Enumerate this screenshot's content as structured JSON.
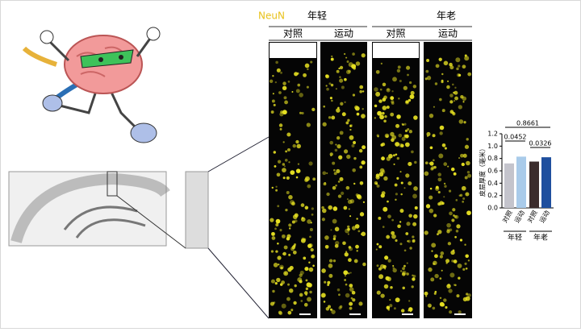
{
  "panel_labels": {
    "stain": "NeuN",
    "groups": [
      "年轻",
      "年老"
    ],
    "conditions": [
      "对照",
      "运动",
      "对照",
      "运动"
    ]
  },
  "chart_data": {
    "type": "bar",
    "ylabel": "皮层厚度（毫米）",
    "categories": [
      "对照",
      "运动",
      "对照",
      "运动"
    ],
    "groups": [
      "年轻",
      "年老"
    ],
    "values": [
      0.72,
      0.83,
      0.75,
      0.82
    ],
    "colors": [
      "#c4c4cc",
      "#a9cbea",
      "#3b2c2c",
      "#1f4f9e"
    ],
    "ylim": [
      0,
      1.2
    ],
    "yticks": [
      {
        "value": 0,
        "label": "0.0"
      },
      0.2,
      0.4,
      0.6,
      0.8,
      {
        "value": 1,
        "label": "1.0"
      },
      1.2
    ],
    "p_values": [
      0.8661,
      0.0452,
      0.0326
    ]
  }
}
